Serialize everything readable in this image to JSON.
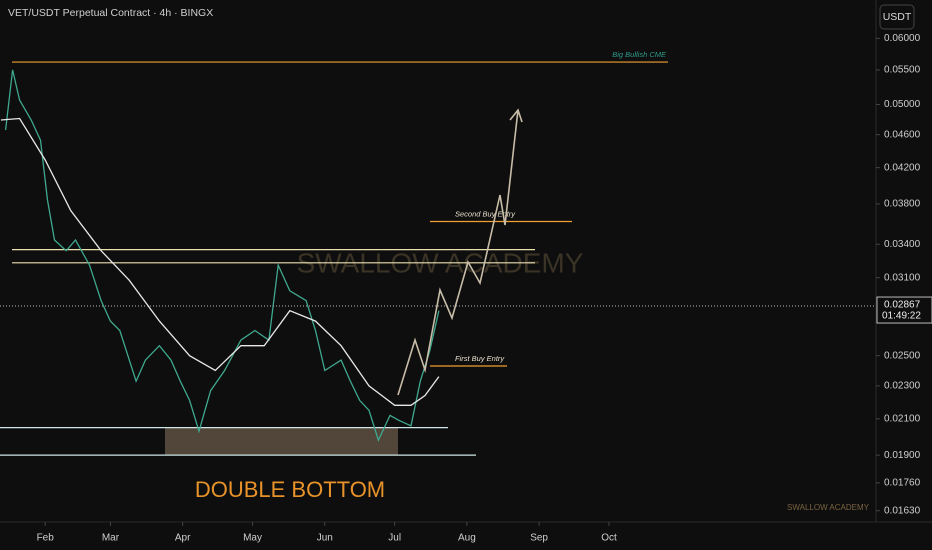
{
  "chart_data": {
    "type": "line",
    "title": "VET/USDT Perpetual Contract · 4h · BINGX",
    "currency_button": "USDT",
    "watermark": "SWALLOW ACADEMY",
    "footer_mark": "SWALLOW ACADEMY",
    "annotation": "DOUBLE BOTTOM",
    "log_scale": true,
    "xlim": [
      11.6,
      387.6
    ],
    "xticks": [
      {
        "value": 31,
        "label": "Feb"
      },
      {
        "value": 59,
        "label": "Mar"
      },
      {
        "value": 90,
        "label": "Apr"
      },
      {
        "value": 120,
        "label": "May"
      },
      {
        "value": 151,
        "label": "Jun"
      },
      {
        "value": 181,
        "label": "Jul"
      },
      {
        "value": 212,
        "label": "Aug"
      },
      {
        "value": 243,
        "label": "Sep"
      },
      {
        "value": 273,
        "label": "Oct"
      }
    ],
    "ylim": [
      0.0158,
      0.0667
    ],
    "yticks": [
      {
        "value": 0.06,
        "label": "0.06000"
      },
      {
        "value": 0.055,
        "label": "0.05500"
      },
      {
        "value": 0.05,
        "label": "0.05000"
      },
      {
        "value": 0.046,
        "label": "0.04600"
      },
      {
        "value": 0.042,
        "label": "0.04200"
      },
      {
        "value": 0.038,
        "label": "0.03800"
      },
      {
        "value": 0.034,
        "label": "0.03400"
      },
      {
        "value": 0.031,
        "label": "0.03100"
      },
      {
        "value": 0.025,
        "label": "0.02500"
      },
      {
        "value": 0.023,
        "label": "0.02300"
      },
      {
        "value": 0.021,
        "label": "0.02100"
      },
      {
        "value": 0.019,
        "label": "0.01900"
      },
      {
        "value": 0.0176,
        "label": "0.01760"
      },
      {
        "value": 0.0163,
        "label": "0.01630"
      }
    ],
    "current_price": 0.02867,
    "countdown": "01:49:22",
    "series": [
      {
        "color": "#3fa88e",
        "x": [
          14,
          17,
          20,
          25,
          29,
          32,
          35,
          40,
          44,
          50,
          55,
          59,
          63,
          70,
          74,
          80,
          85,
          89,
          93,
          97,
          102,
          108,
          115,
          121,
          127,
          131,
          136,
          143,
          147,
          151,
          158,
          162,
          166,
          170,
          174,
          179,
          183,
          188,
          192,
          196,
          200
        ],
        "values": [
          0.0466,
          0.055,
          0.0506,
          0.0479,
          0.0453,
          0.0384,
          0.0344,
          0.0334,
          0.0344,
          0.0321,
          0.0291,
          0.0275,
          0.0268,
          0.0233,
          0.0247,
          0.0257,
          0.0247,
          0.0233,
          0.0221,
          0.0203,
          0.0227,
          0.024,
          0.0261,
          0.0268,
          0.0261,
          0.0321,
          0.0299,
          0.0291,
          0.0268,
          0.024,
          0.0247,
          0.0233,
          0.0221,
          0.0215,
          0.0198,
          0.0212,
          0.0209,
          0.0206,
          0.0233,
          0.0253,
          0.0283
        ]
      },
      {
        "color": "#e8e8e8",
        "x": [
          12,
          20,
          31,
          42,
          55,
          67,
          80,
          93,
          104,
          115,
          125,
          136,
          147,
          158,
          170,
          181,
          188,
          194,
          200
        ],
        "values": [
          0.0479,
          0.0481,
          0.0429,
          0.0373,
          0.0334,
          0.0308,
          0.0275,
          0.025,
          0.024,
          0.0257,
          0.0257,
          0.0283,
          0.0275,
          0.0257,
          0.023,
          0.0218,
          0.0218,
          0.0224,
          0.0236
        ]
      }
    ],
    "levels": [
      {
        "value": 0.0562,
        "label": "Big Bullish CME",
        "color": "#f2a033"
      },
      {
        "value": 0.0362,
        "label": "Second Buy Entry",
        "color": "#f2a033"
      },
      {
        "value": 0.0335,
        "color": "#ece0b0"
      },
      {
        "value": 0.0323,
        "color": "#ece0b0"
      },
      {
        "value": 0.0243,
        "label": "First Buy Entry",
        "color": "#f2a033"
      },
      {
        "value": 0.0205,
        "color": "#cfe6e6"
      },
      {
        "value": 0.019,
        "color": "#cfe6e6"
      }
    ],
    "zone": {
      "low": 0.019,
      "high": 0.0205,
      "color": "#8a7560"
    }
  }
}
